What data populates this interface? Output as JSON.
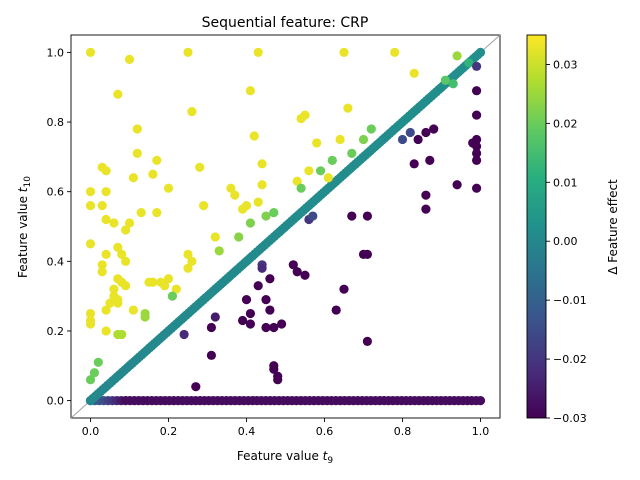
{
  "chart_data": {
    "type": "scatter",
    "title": "Sequential feature: CRP",
    "xlabel_prefix": "Feature value ",
    "xlabel_var": "t",
    "xlabel_sub": "9",
    "ylabel_prefix": "Feature value ",
    "ylabel_var": "t",
    "ylabel_sub": "10",
    "xlim": [
      -0.05,
      1.05
    ],
    "ylim": [
      -0.05,
      1.05
    ],
    "xticks": [
      0.0,
      0.2,
      0.4,
      0.6,
      0.8,
      1.0
    ],
    "yticks": [
      0.0,
      0.2,
      0.4,
      0.6,
      0.8,
      1.0
    ],
    "xtick_labels": [
      "0.0",
      "0.2",
      "0.4",
      "0.6",
      "0.8",
      "1.0"
    ],
    "ytick_labels": [
      "0.0",
      "0.2",
      "0.4",
      "0.6",
      "0.8",
      "1.0"
    ],
    "diagonal_line": true,
    "grid": false,
    "colorbar": {
      "label": "Δ Feature effect",
      "colormap": "viridis",
      "range": [
        -0.03,
        0.035
      ],
      "ticks": [
        -0.03,
        -0.02,
        -0.01,
        0.0,
        0.01,
        0.02,
        0.03
      ],
      "tick_labels": [
        "−0.03",
        "−0.02",
        "−0.01",
        "0.00",
        "0.01",
        "0.02",
        "0.03"
      ]
    },
    "points": [
      {
        "x": 0.0,
        "y": 1.0,
        "c": 0.033
      },
      {
        "x": 0.1,
        "y": 0.98,
        "c": 0.033
      },
      {
        "x": 0.25,
        "y": 1.0,
        "c": 0.033
      },
      {
        "x": 0.43,
        "y": 1.0,
        "c": 0.033
      },
      {
        "x": 0.65,
        "y": 1.0,
        "c": 0.033
      },
      {
        "x": 0.78,
        "y": 1.0,
        "c": 0.033
      },
      {
        "x": 0.94,
        "y": 0.99,
        "c": 0.025
      },
      {
        "x": 0.07,
        "y": 0.88,
        "c": 0.033
      },
      {
        "x": 0.26,
        "y": 0.83,
        "c": 0.033
      },
      {
        "x": 0.41,
        "y": 0.89,
        "c": 0.033
      },
      {
        "x": 0.54,
        "y": 0.81,
        "c": 0.033
      },
      {
        "x": 0.55,
        "y": 0.82,
        "c": 0.033
      },
      {
        "x": 0.66,
        "y": 0.84,
        "c": 0.033
      },
      {
        "x": 0.12,
        "y": 0.78,
        "c": 0.033
      },
      {
        "x": 0.42,
        "y": 0.76,
        "c": 0.033
      },
      {
        "x": 0.58,
        "y": 0.74,
        "c": 0.033
      },
      {
        "x": 0.64,
        "y": 0.75,
        "c": 0.033
      },
      {
        "x": 0.83,
        "y": 0.94,
        "c": 0.033
      },
      {
        "x": 0.12,
        "y": 0.71,
        "c": 0.033
      },
      {
        "x": 0.17,
        "y": 0.69,
        "c": 0.033
      },
      {
        "x": 0.03,
        "y": 0.67,
        "c": 0.033
      },
      {
        "x": 0.04,
        "y": 0.66,
        "c": 0.033
      },
      {
        "x": 0.11,
        "y": 0.64,
        "c": 0.033
      },
      {
        "x": 0.16,
        "y": 0.65,
        "c": 0.033
      },
      {
        "x": 0.28,
        "y": 0.67,
        "c": 0.033
      },
      {
        "x": 0.44,
        "y": 0.68,
        "c": 0.033
      },
      {
        "x": 0.56,
        "y": 0.66,
        "c": 0.033
      },
      {
        "x": 0.61,
        "y": 0.64,
        "c": 0.033
      },
      {
        "x": 0.0,
        "y": 0.6,
        "c": 0.033
      },
      {
        "x": 0.04,
        "y": 0.6,
        "c": 0.033
      },
      {
        "x": 0.2,
        "y": 0.61,
        "c": 0.033
      },
      {
        "x": 0.36,
        "y": 0.61,
        "c": 0.033
      },
      {
        "x": 0.37,
        "y": 0.59,
        "c": 0.033
      },
      {
        "x": 0.44,
        "y": 0.62,
        "c": 0.033
      },
      {
        "x": 0.53,
        "y": 0.63,
        "c": 0.033
      },
      {
        "x": 0.0,
        "y": 0.56,
        "c": 0.033
      },
      {
        "x": 0.03,
        "y": 0.56,
        "c": 0.033
      },
      {
        "x": 0.29,
        "y": 0.56,
        "c": 0.033
      },
      {
        "x": 0.39,
        "y": 0.55,
        "c": 0.033
      },
      {
        "x": 0.4,
        "y": 0.56,
        "c": 0.033
      },
      {
        "x": 0.43,
        "y": 0.57,
        "c": 0.033
      },
      {
        "x": 0.04,
        "y": 0.52,
        "c": 0.033
      },
      {
        "x": 0.06,
        "y": 0.51,
        "c": 0.033
      },
      {
        "x": 0.1,
        "y": 0.51,
        "c": 0.033
      },
      {
        "x": 0.13,
        "y": 0.54,
        "c": 0.033
      },
      {
        "x": 0.17,
        "y": 0.54,
        "c": 0.033
      },
      {
        "x": 0.0,
        "y": 0.45,
        "c": 0.033
      },
      {
        "x": 0.07,
        "y": 0.44,
        "c": 0.033
      },
      {
        "x": 0.09,
        "y": 0.49,
        "c": 0.033
      },
      {
        "x": 0.32,
        "y": 0.47,
        "c": 0.033
      },
      {
        "x": 0.04,
        "y": 0.42,
        "c": 0.033
      },
      {
        "x": 0.08,
        "y": 0.42,
        "c": 0.033
      },
      {
        "x": 0.09,
        "y": 0.4,
        "c": 0.033
      },
      {
        "x": 0.25,
        "y": 0.42,
        "c": 0.033
      },
      {
        "x": 0.26,
        "y": 0.4,
        "c": 0.033
      },
      {
        "x": 0.03,
        "y": 0.39,
        "c": 0.033
      },
      {
        "x": 0.03,
        "y": 0.37,
        "c": 0.033
      },
      {
        "x": 0.25,
        "y": 0.38,
        "c": 0.033
      },
      {
        "x": 0.07,
        "y": 0.35,
        "c": 0.033
      },
      {
        "x": 0.08,
        "y": 0.34,
        "c": 0.033
      },
      {
        "x": 0.09,
        "y": 0.33,
        "c": 0.033
      },
      {
        "x": 0.15,
        "y": 0.34,
        "c": 0.033
      },
      {
        "x": 0.16,
        "y": 0.34,
        "c": 0.033
      },
      {
        "x": 0.18,
        "y": 0.34,
        "c": 0.033
      },
      {
        "x": 0.19,
        "y": 0.33,
        "c": 0.033
      },
      {
        "x": 0.2,
        "y": 0.35,
        "c": 0.033
      },
      {
        "x": 0.22,
        "y": 0.32,
        "c": 0.033
      },
      {
        "x": 0.06,
        "y": 0.32,
        "c": 0.033
      },
      {
        "x": 0.06,
        "y": 0.3,
        "c": 0.033
      },
      {
        "x": 0.07,
        "y": 0.29,
        "c": 0.033
      },
      {
        "x": 0.05,
        "y": 0.28,
        "c": 0.033
      },
      {
        "x": 0.07,
        "y": 0.28,
        "c": 0.033
      },
      {
        "x": 0.04,
        "y": 0.26,
        "c": 0.033
      },
      {
        "x": 0.11,
        "y": 0.26,
        "c": 0.033
      },
      {
        "x": 0.0,
        "y": 0.25,
        "c": 0.033
      },
      {
        "x": 0.0,
        "y": 0.23,
        "c": 0.033
      },
      {
        "x": 0.0,
        "y": 0.22,
        "c": 0.033
      },
      {
        "x": 0.04,
        "y": 0.2,
        "c": 0.033
      },
      {
        "x": 0.07,
        "y": 0.19,
        "c": 0.027
      },
      {
        "x": 0.08,
        "y": 0.19,
        "c": 0.027
      },
      {
        "x": 0.14,
        "y": 0.25,
        "c": 0.025
      },
      {
        "x": 0.14,
        "y": 0.24,
        "c": 0.025
      },
      {
        "x": 0.02,
        "y": 0.11,
        "c": 0.02
      },
      {
        "x": 0.01,
        "y": 0.08,
        "c": 0.02
      },
      {
        "x": 0.0,
        "y": 0.06,
        "c": 0.02
      },
      {
        "x": 0.21,
        "y": 0.3,
        "c": 0.02
      },
      {
        "x": 0.33,
        "y": 0.43,
        "c": 0.025
      },
      {
        "x": 0.38,
        "y": 0.47,
        "c": 0.023
      },
      {
        "x": 0.41,
        "y": 0.51,
        "c": 0.022
      },
      {
        "x": 0.45,
        "y": 0.53,
        "c": 0.022
      },
      {
        "x": 0.47,
        "y": 0.54,
        "c": 0.02
      },
      {
        "x": 0.54,
        "y": 0.61,
        "c": 0.02
      },
      {
        "x": 0.59,
        "y": 0.66,
        "c": 0.02
      },
      {
        "x": 0.62,
        "y": 0.69,
        "c": 0.02
      },
      {
        "x": 0.67,
        "y": 0.71,
        "c": 0.02
      },
      {
        "x": 0.7,
        "y": 0.75,
        "c": 0.022
      },
      {
        "x": 0.72,
        "y": 0.78,
        "c": 0.02
      },
      {
        "x": 0.91,
        "y": 0.92,
        "c": 0.018
      },
      {
        "x": 0.93,
        "y": 0.91,
        "c": 0.015
      },
      {
        "x": 0.97,
        "y": 0.97,
        "c": 0.012
      },
      {
        "x": 0.99,
        "y": 0.96,
        "c": -0.02
      },
      {
        "x": 0.99,
        "y": 0.89,
        "c": -0.03
      },
      {
        "x": 0.99,
        "y": 0.82,
        "c": -0.03
      },
      {
        "x": 0.99,
        "y": 0.75,
        "c": -0.03
      },
      {
        "x": 0.98,
        "y": 0.74,
        "c": -0.03
      },
      {
        "x": 0.99,
        "y": 0.73,
        "c": -0.03
      },
      {
        "x": 0.99,
        "y": 0.71,
        "c": -0.03
      },
      {
        "x": 0.99,
        "y": 0.69,
        "c": -0.03
      },
      {
        "x": 0.99,
        "y": 0.61,
        "c": -0.03
      },
      {
        "x": 0.94,
        "y": 0.62,
        "c": -0.03
      },
      {
        "x": 0.86,
        "y": 0.77,
        "c": -0.03
      },
      {
        "x": 0.88,
        "y": 0.78,
        "c": -0.03
      },
      {
        "x": 0.84,
        "y": 0.75,
        "c": -0.03
      },
      {
        "x": 0.87,
        "y": 0.69,
        "c": -0.03
      },
      {
        "x": 0.83,
        "y": 0.68,
        "c": -0.03
      },
      {
        "x": 0.86,
        "y": 0.59,
        "c": -0.03
      },
      {
        "x": 0.86,
        "y": 0.55,
        "c": -0.03
      },
      {
        "x": 0.71,
        "y": 0.42,
        "c": -0.03
      },
      {
        "x": 0.7,
        "y": 0.42,
        "c": -0.03
      },
      {
        "x": 0.71,
        "y": 0.17,
        "c": -0.03
      },
      {
        "x": 0.67,
        "y": 0.53,
        "c": -0.03
      },
      {
        "x": 0.71,
        "y": 0.53,
        "c": -0.03
      },
      {
        "x": 0.65,
        "y": 0.32,
        "c": -0.03
      },
      {
        "x": 0.63,
        "y": 0.26,
        "c": -0.03
      },
      {
        "x": 0.52,
        "y": 0.39,
        "c": -0.03
      },
      {
        "x": 0.53,
        "y": 0.37,
        "c": -0.03
      },
      {
        "x": 0.55,
        "y": 0.36,
        "c": -0.03
      },
      {
        "x": 0.46,
        "y": 0.35,
        "c": -0.03
      },
      {
        "x": 0.45,
        "y": 0.29,
        "c": -0.03
      },
      {
        "x": 0.46,
        "y": 0.26,
        "c": -0.03
      },
      {
        "x": 0.45,
        "y": 0.21,
        "c": -0.03
      },
      {
        "x": 0.47,
        "y": 0.21,
        "c": -0.03
      },
      {
        "x": 0.49,
        "y": 0.22,
        "c": -0.03
      },
      {
        "x": 0.47,
        "y": 0.1,
        "c": -0.03
      },
      {
        "x": 0.47,
        "y": 0.09,
        "c": -0.03
      },
      {
        "x": 0.48,
        "y": 0.07,
        "c": -0.03
      },
      {
        "x": 0.48,
        "y": 0.06,
        "c": -0.03
      },
      {
        "x": 0.43,
        "y": 0.33,
        "c": -0.03
      },
      {
        "x": 0.4,
        "y": 0.29,
        "c": -0.03
      },
      {
        "x": 0.41,
        "y": 0.25,
        "c": -0.03
      },
      {
        "x": 0.39,
        "y": 0.23,
        "c": -0.03
      },
      {
        "x": 0.41,
        "y": 0.22,
        "c": -0.03
      },
      {
        "x": 0.31,
        "y": 0.21,
        "c": -0.03
      },
      {
        "x": 0.31,
        "y": 0.13,
        "c": -0.03
      },
      {
        "x": 0.27,
        "y": 0.04,
        "c": -0.03
      },
      {
        "x": 0.32,
        "y": 0.24,
        "c": -0.025
      },
      {
        "x": 0.24,
        "y": 0.19,
        "c": -0.022
      },
      {
        "x": 0.44,
        "y": 0.39,
        "c": -0.02
      },
      {
        "x": 0.44,
        "y": 0.38,
        "c": -0.022
      },
      {
        "x": 0.56,
        "y": 0.52,
        "c": -0.02
      },
      {
        "x": 0.57,
        "y": 0.53,
        "c": -0.015
      },
      {
        "x": 0.8,
        "y": 0.75,
        "c": -0.015
      },
      {
        "x": 0.82,
        "y": 0.77,
        "c": -0.015
      }
    ],
    "dense_diagonal": {
      "c_start": 0.0,
      "c_end": 0.002,
      "count": 160
    },
    "dense_bottom_row": {
      "y": 0.0,
      "x_from": 0.0,
      "x_to": 1.0,
      "count": 90
    }
  }
}
